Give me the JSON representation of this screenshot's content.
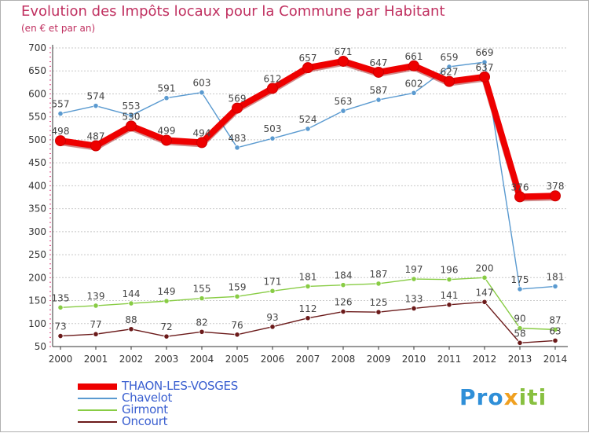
{
  "header": {
    "title": "Evolution des Impôts locaux pour la Commune par Habitant",
    "subtitle": "(en € et par an)"
  },
  "logo": {
    "text_part1": "Pro",
    "text_part2": "x",
    "text_part3": "iti"
  },
  "colors": {
    "title": "#c03060",
    "grid": "#c8c8c8",
    "axis": "#333333",
    "tick_mark": "#e04080",
    "legend_text": "#3a5fd0"
  },
  "chart_data": {
    "type": "line",
    "title": "Evolution des Impôts locaux pour la Commune par Habitant",
    "subtitle": "(en € et par an)",
    "xlabel": "",
    "ylabel": "",
    "ylim": [
      50,
      700
    ],
    "yticks": [
      50,
      100,
      150,
      200,
      250,
      300,
      350,
      400,
      450,
      500,
      550,
      600,
      650,
      700
    ],
    "grid": true,
    "legend_position": "bottom-left",
    "categories": [
      "2000",
      "2001",
      "2002",
      "2003",
      "2004",
      "2005",
      "2006",
      "2007",
      "2008",
      "2009",
      "2010",
      "2011",
      "2012",
      "2013",
      "2014"
    ],
    "series": [
      {
        "name": "THAON-LES-VOSGES",
        "color": "#ee0000",
        "style": "bold",
        "values": [
          498,
          487,
          530,
          499,
          494,
          569,
          612,
          657,
          671,
          647,
          661,
          627,
          637,
          376,
          378
        ]
      },
      {
        "name": "Chavelot",
        "color": "#5a9ad0",
        "style": "thin",
        "values": [
          557,
          574,
          553,
          591,
          603,
          483,
          503,
          524,
          563,
          587,
          602,
          659,
          669,
          175,
          181
        ]
      },
      {
        "name": "Girmont",
        "color": "#88cc44",
        "style": "thin",
        "values": [
          135,
          139,
          144,
          149,
          155,
          159,
          171,
          181,
          184,
          187,
          197,
          196,
          200,
          90,
          87
        ]
      },
      {
        "name": "Oncourt",
        "color": "#6b1a1a",
        "style": "thin",
        "values": [
          73,
          77,
          88,
          72,
          82,
          76,
          93,
          112,
          126,
          125,
          133,
          141,
          147,
          58,
          63
        ]
      }
    ]
  }
}
